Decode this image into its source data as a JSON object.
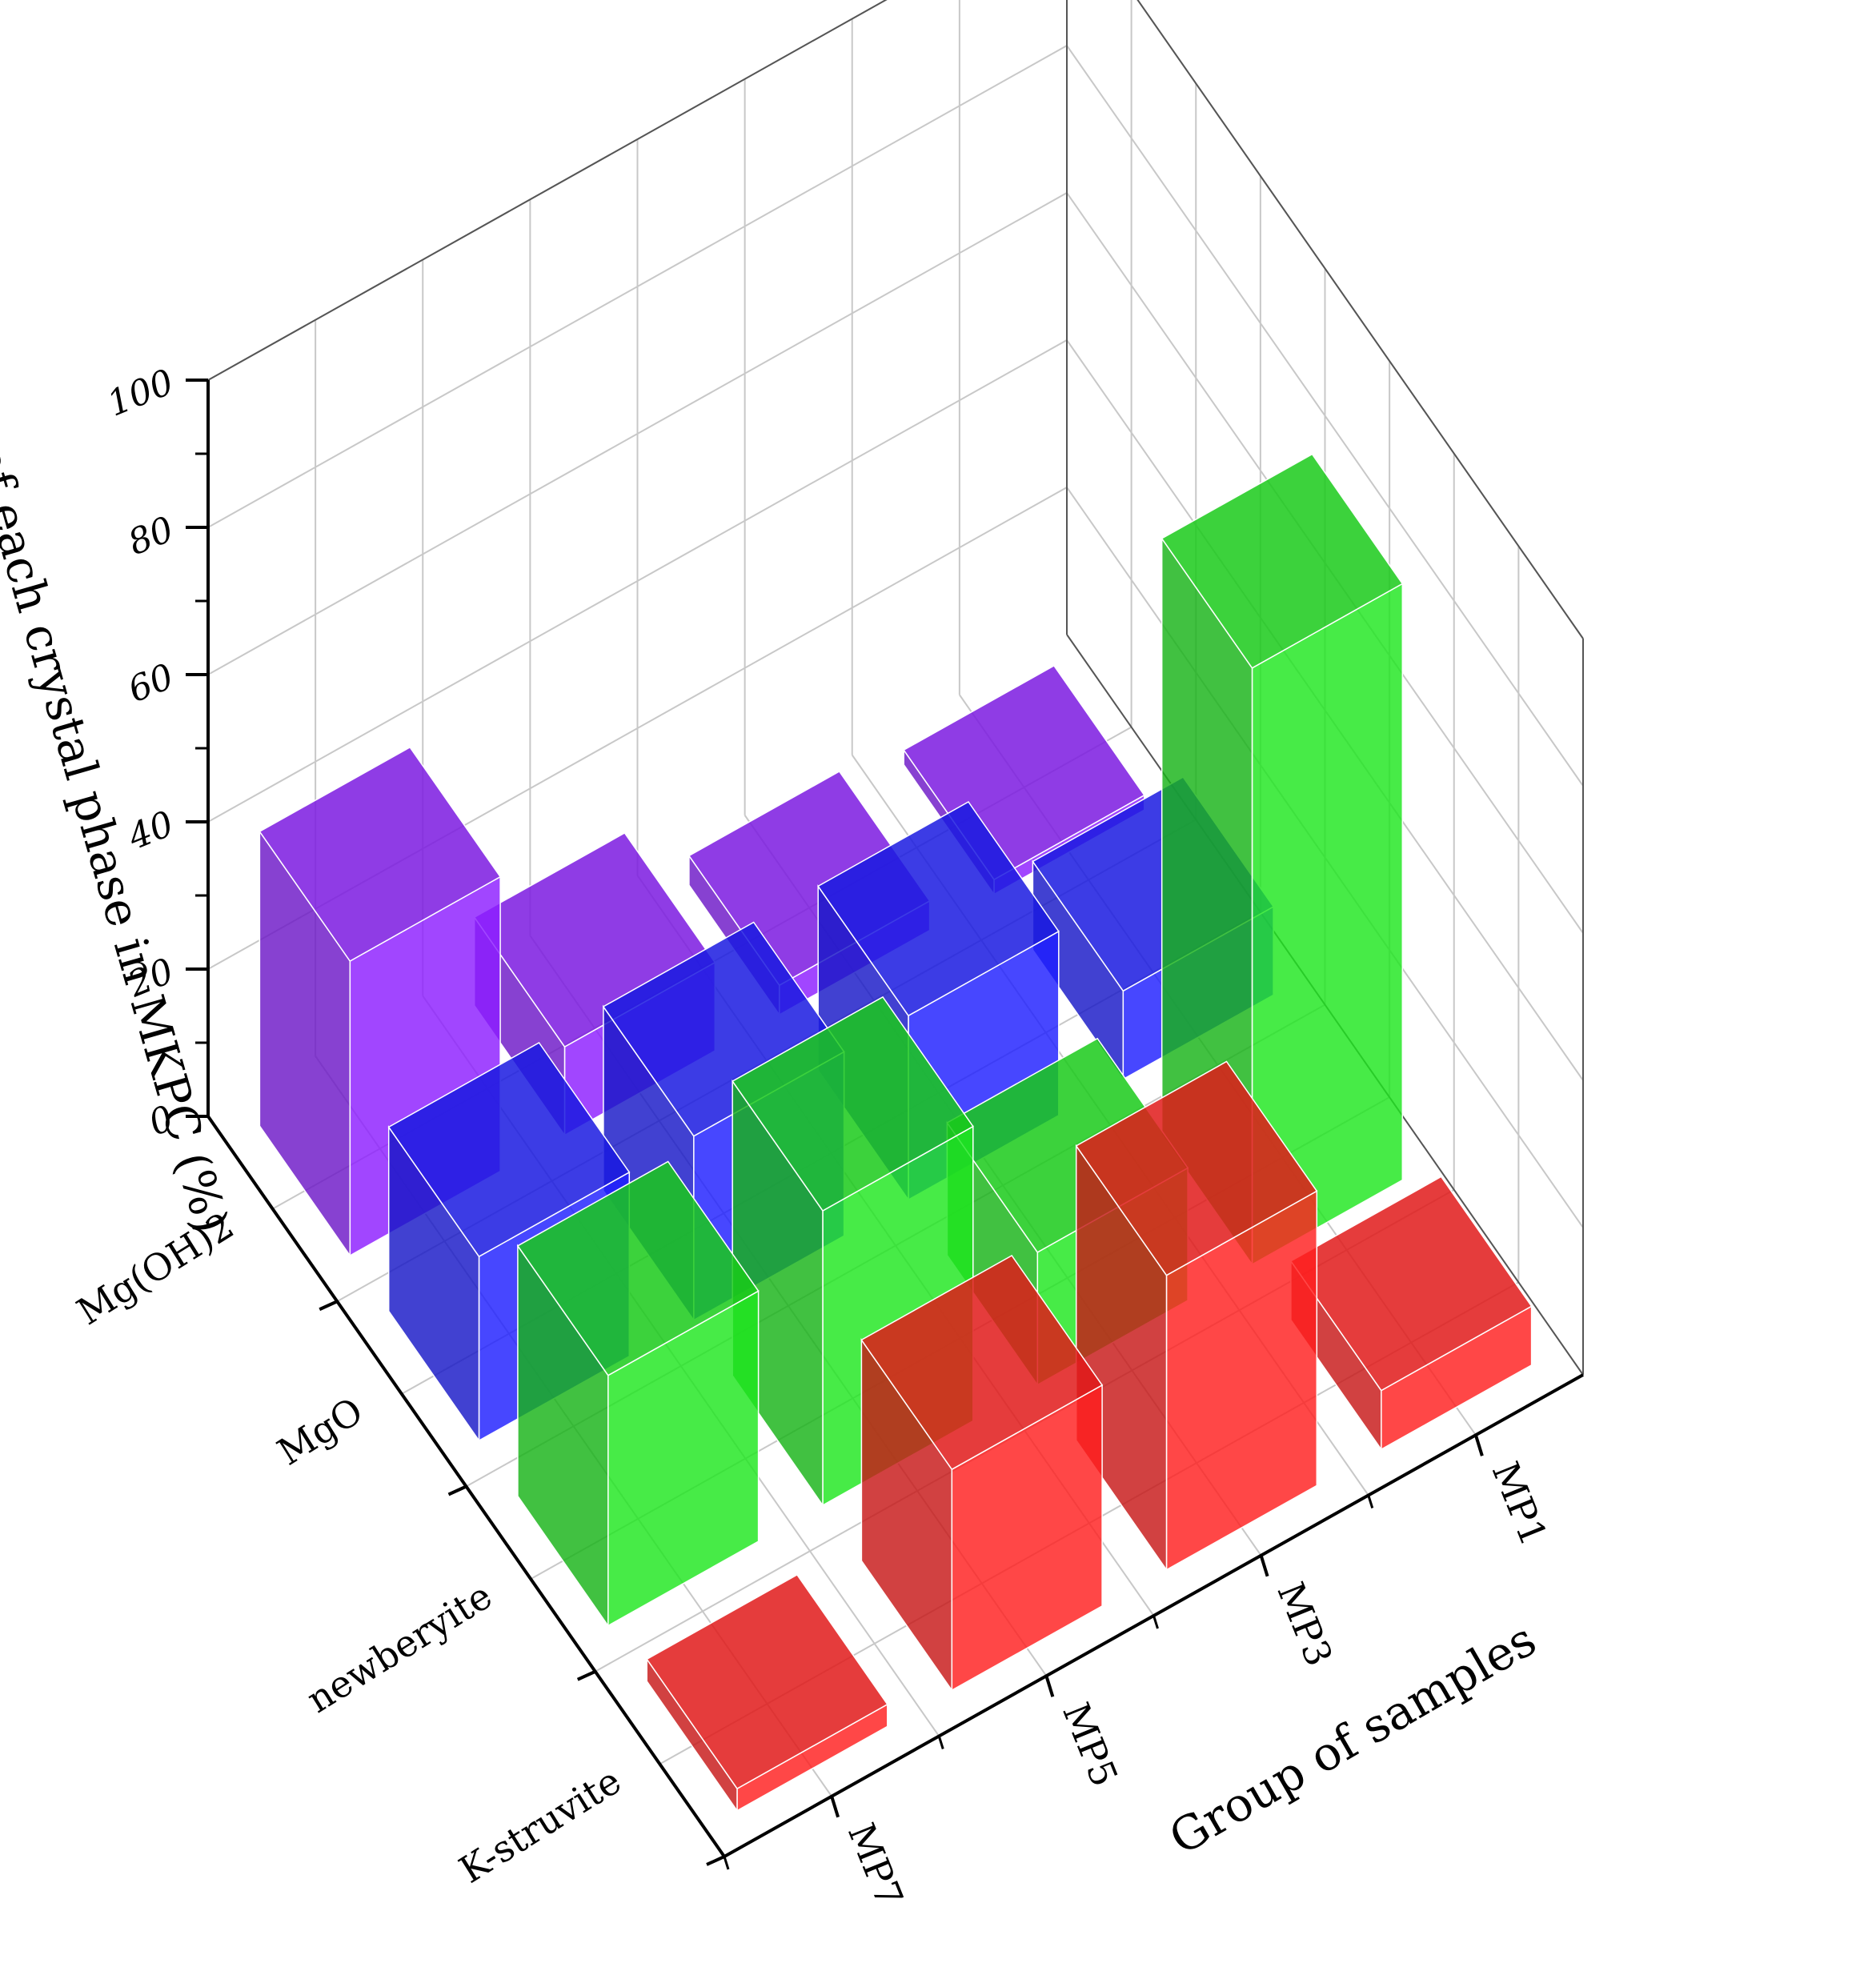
{
  "chart_data": {
    "type": "bar3d",
    "zlabel": "Percentage of each crystal phase in MKPC (%)",
    "xlabel": "Group of samples",
    "ylabel": "",
    "zlim": [
      0,
      100
    ],
    "z_ticks": [
      "0",
      "20",
      "40",
      "60",
      "80",
      "100"
    ],
    "samples": [
      "MP7",
      "MP5",
      "MP3",
      "MP1"
    ],
    "phases": [
      "Mg(OH)2",
      "MgO",
      "newberyite",
      "K-struvite"
    ],
    "series": [
      {
        "name": "Mg(OH)2",
        "color": "#8c1dff",
        "values": [
          40,
          12,
          4,
          2
        ]
      },
      {
        "name": "MgO",
        "color": "#1e1eff",
        "values": [
          25,
          25,
          25,
          12
        ]
      },
      {
        "name": "newberyite",
        "color": "#1ee61e",
        "values": [
          34,
          40,
          18,
          81
        ]
      },
      {
        "name": "K-struvite",
        "color": "#ff1e1e",
        "values": [
          3,
          30,
          40,
          8
        ]
      }
    ],
    "grid": true,
    "legend": "none"
  }
}
